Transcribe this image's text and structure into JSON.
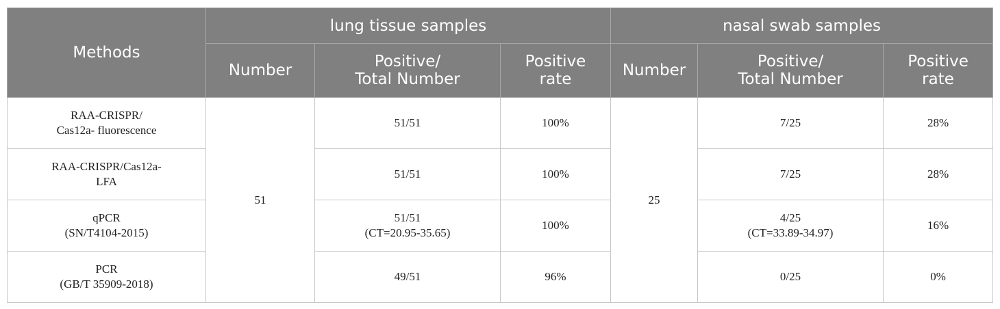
{
  "table": {
    "header": {
      "methods": "Methods",
      "lung_group": "lung tissue samples",
      "nasal_group": "nasal swab samples",
      "number": "Number",
      "positive_total_line1": "Positive/",
      "positive_total_line2": "Total Number",
      "positive_rate_line1": "Positive",
      "positive_rate_line2": "rate"
    },
    "lung_number": "51",
    "nasal_number": "25",
    "rows": [
      {
        "method_line1": "RAA-CRISPR/",
        "method_line2": "Cas12a- fluorescence",
        "lung_ratio": "51/51",
        "lung_ct": "",
        "lung_rate": "100%",
        "nasal_ratio": "7/25",
        "nasal_ct": "",
        "nasal_rate": "28%"
      },
      {
        "method_line1": "RAA-CRISPR/Cas12a-",
        "method_line2": "LFA",
        "lung_ratio": "51/51",
        "lung_ct": "",
        "lung_rate": "100%",
        "nasal_ratio": "7/25",
        "nasal_ct": "",
        "nasal_rate": "28%"
      },
      {
        "method_line1": "qPCR",
        "method_line2": "(SN/T4104-2015)",
        "lung_ratio": "51/51",
        "lung_ct": "(CT=20.95-35.65)",
        "lung_rate": "100%",
        "nasal_ratio": "4/25",
        "nasal_ct": "(CT=33.89-34.97)",
        "nasal_rate": "16%"
      },
      {
        "method_line1": "PCR",
        "method_line2": "(GB/T 35909-2018)",
        "lung_ratio": "49/51",
        "lung_ct": "",
        "lung_rate": "96%",
        "nasal_ratio": "0/25",
        "nasal_ct": "",
        "nasal_rate": "0%"
      }
    ]
  }
}
